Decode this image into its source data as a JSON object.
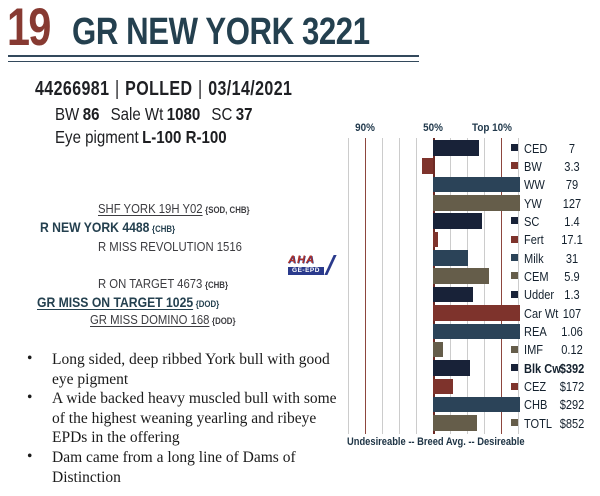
{
  "lot": {
    "number": "19",
    "name": "GR NEW YORK 3221"
  },
  "colors": {
    "lot_number": "#873a32",
    "title_navy": "#24404f",
    "navy": "#182238",
    "maroon": "#7e332c",
    "teal": "#2b4358",
    "olive": "#655d4a"
  },
  "registration": {
    "reg_no": "44266981",
    "divider": "|",
    "horn_status": "POLLED",
    "birth_date": "03/14/2021"
  },
  "stats": {
    "line1": [
      {
        "label": "BW",
        "value": "86"
      },
      {
        "label": "Sale Wt",
        "value": "1080"
      },
      {
        "label": "SC",
        "value": "37"
      }
    ],
    "line2": [
      {
        "label": "Eye pigment",
        "value": "L-100  R-100"
      }
    ]
  },
  "pedigree": [
    {
      "name": "SHF YORK 19H Y02",
      "tags": "{SOD, CHB}",
      "accent": false,
      "underline": true
    },
    {
      "name": "R NEW YORK 4488",
      "tags": "{CHB}",
      "accent": true,
      "underline": false
    },
    {
      "name": "R MISS REVOLUTION 1516",
      "tags": "",
      "accent": false,
      "underline": false
    },
    {
      "name": "R ON TARGET 4673",
      "tags": "{CHB}",
      "accent": false,
      "underline": false
    },
    {
      "name": "GR MISS ON TARGET 1025",
      "tags": "{DOD}",
      "accent": true,
      "underline": true
    },
    {
      "name": "GR MISS DOMINO 168",
      "tags": "{DOD}",
      "accent": false,
      "underline": true
    }
  ],
  "logo": {
    "line1": "AHA",
    "line2": "GE-EPD"
  },
  "notes": [
    "Long sided, deep ribbed York bull with good eye pigment",
    "A wide backed heavy muscled bull with some of the highest weaning yearling and ribeye EPDs in the offering",
    "Dam came from a long line of Dams of Distinction"
  ],
  "bullet_glyph": "•",
  "chart_data": {
    "type": "bar",
    "title": "EPD percentile bar chart",
    "header_ticks": [
      "90%",
      "50%",
      "Top 10%"
    ],
    "footer": "Undesireable -- Breed Avg. -- Desireable",
    "axis": {
      "orientation": "horizontal",
      "left_percentile": 100,
      "right_percentile": 0,
      "reference_lines": [
        90,
        50,
        10
      ],
      "gridlines_every": 10
    },
    "rows": [
      {
        "label": "CED",
        "value": "7",
        "color": "navy",
        "start_pct": 50,
        "end_pct": 23,
        "marker": true,
        "bold": false
      },
      {
        "label": "BW",
        "value": "3.3",
        "color": "maroon",
        "start_pct": 56.5,
        "end_pct": 50,
        "marker": true,
        "bold": false
      },
      {
        "label": "WW",
        "value": "79",
        "color": "teal",
        "start_pct": 50,
        "end_pct": -1.2,
        "marker": false,
        "bold": false
      },
      {
        "label": "YW",
        "value": "127",
        "color": "olive",
        "start_pct": 50,
        "end_pct": -1.2,
        "marker": false,
        "bold": false
      },
      {
        "label": "SC",
        "value": "1.4",
        "color": "navy",
        "start_pct": 50,
        "end_pct": 21,
        "marker": true,
        "bold": false
      },
      {
        "label": "Fert",
        "value": "17.1",
        "color": "maroon",
        "start_pct": 50,
        "end_pct": 47.2,
        "marker": true,
        "bold": false
      },
      {
        "label": "Milk",
        "value": "31",
        "color": "teal",
        "start_pct": 50,
        "end_pct": 29.5,
        "marker": true,
        "bold": false
      },
      {
        "label": "CEM",
        "value": "5.9",
        "color": "olive",
        "start_pct": 50,
        "end_pct": 17,
        "marker": true,
        "bold": false
      },
      {
        "label": "Udder",
        "value": "1.3",
        "color": "navy",
        "start_pct": 50,
        "end_pct": 26.5,
        "marker": true,
        "bold": false
      },
      {
        "label": "Car Wt",
        "value": "107",
        "color": "maroon",
        "start_pct": 50,
        "end_pct": -1.2,
        "marker": false,
        "bold": false
      },
      {
        "label": "REA",
        "value": "1.06",
        "color": "teal",
        "start_pct": 50,
        "end_pct": -1.2,
        "marker": false,
        "bold": false
      },
      {
        "label": "IMF",
        "value": "0.12",
        "color": "olive",
        "start_pct": 50,
        "end_pct": 44,
        "marker": true,
        "bold": false
      },
      {
        "label": "Blk Cw",
        "value": "$392",
        "color": "navy",
        "start_pct": 50,
        "end_pct": 28.5,
        "marker": true,
        "bold": true
      },
      {
        "label": "CEZ",
        "value": "$172",
        "color": "maroon",
        "start_pct": 50,
        "end_pct": 38,
        "marker": true,
        "bold": false
      },
      {
        "label": "CHB",
        "value": "$292",
        "color": "teal",
        "start_pct": 50,
        "end_pct": -1.2,
        "marker": false,
        "bold": false
      },
      {
        "label": "TOTL",
        "value": "$852",
        "color": "olive",
        "start_pct": 50,
        "end_pct": 24,
        "marker": true,
        "bold": false
      }
    ]
  }
}
